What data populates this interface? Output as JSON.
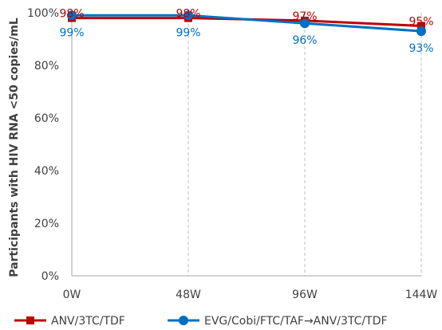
{
  "chart_data": {
    "type": "line",
    "title": "",
    "xlabel": "",
    "ylabel": "Participants with HIV RNA <50 copies/mL",
    "categories": [
      "0W",
      "48W",
      "96W",
      "144W"
    ],
    "ylim": [
      0,
      100
    ],
    "yticks": [
      "0%",
      "20%",
      "40%",
      "60%",
      "80%",
      "100%"
    ],
    "series": [
      {
        "name": "ANV/3TC/TDF",
        "values": [
          98,
          98,
          97,
          95
        ],
        "labels": [
          "98%",
          "98%",
          "97%",
          "95%"
        ],
        "color": "#c00000",
        "marker": "square",
        "label_position": "above"
      },
      {
        "name": "EVG/Cobi/FTC/TAF→ANV/3TC/TDF",
        "values": [
          99,
          99,
          96,
          93
        ],
        "labels": [
          "99%",
          "99%",
          "96%",
          "93%"
        ],
        "color": "#0070c0",
        "marker": "circle",
        "label_position": "below"
      }
    ],
    "grid": "vertical dashed lines at each category",
    "legend_position": "bottom"
  }
}
